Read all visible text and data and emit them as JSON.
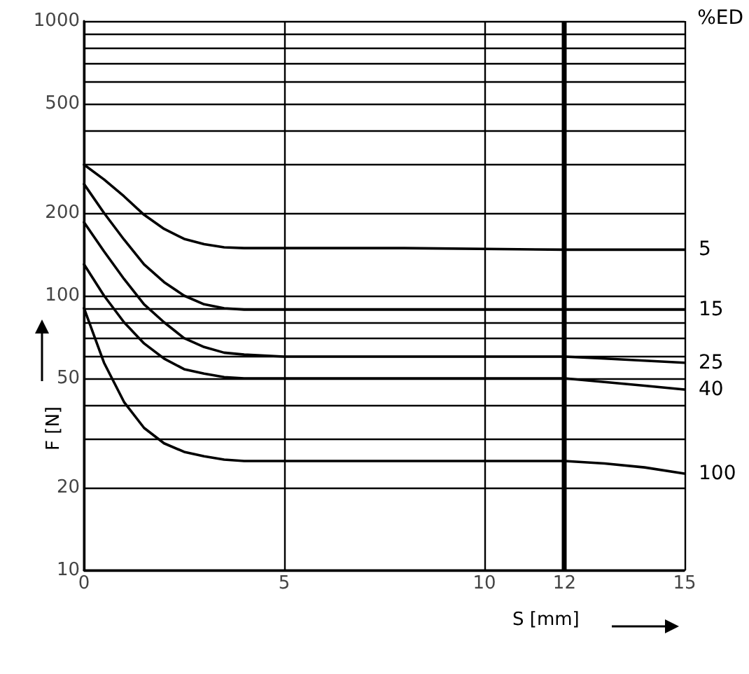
{
  "chart_data": {
    "type": "line",
    "xlabel": "S [mm]",
    "ylabel": "F [N]",
    "legend_title": "%ED",
    "log": "y",
    "grid": true,
    "legend": false,
    "marker": "none",
    "line_style": "solid",
    "xlim": [
      0,
      15
    ],
    "xticks": [
      0,
      5,
      10,
      12,
      15
    ],
    "ylim": [
      10,
      1000
    ],
    "yticks": [
      10,
      20,
      {
        "value": 30,
        "label": null
      },
      {
        "value": 40,
        "label": null
      },
      50,
      {
        "value": 60,
        "label": null
      },
      {
        "value": 70,
        "label": null
      },
      {
        "value": 80,
        "label": null
      },
      {
        "value": 90,
        "label": null
      },
      100,
      200,
      {
        "value": 300,
        "label": null
      },
      {
        "value": 400,
        "label": null
      },
      500,
      {
        "value": 600,
        "label": null
      },
      {
        "value": 700,
        "label": null
      },
      {
        "value": 800,
        "label": null
      },
      {
        "value": 900,
        "label": null
      },
      1000
    ],
    "ref_lines": [
      {
        "axis": "x",
        "value": 12,
        "color": "#000000"
      }
    ],
    "series": [
      {
        "name": "5",
        "color": "#000000",
        "x": [
          0,
          0.5,
          1,
          1.5,
          2,
          2.5,
          3,
          3.5,
          4,
          8,
          12,
          15
        ],
        "values": [
          300,
          265,
          230,
          197,
          175,
          161,
          154,
          150,
          149,
          149,
          147,
          147
        ]
      },
      {
        "name": "15",
        "color": "#000000",
        "x": [
          0,
          0.5,
          1,
          1.5,
          2,
          2.5,
          3,
          3.5,
          4,
          15
        ],
        "values": [
          255,
          200,
          160,
          130,
          112,
          100,
          93,
          90,
          89,
          89
        ]
      },
      {
        "name": "25",
        "color": "#000000",
        "x": [
          0,
          0.5,
          1,
          1.5,
          2,
          2.5,
          3,
          3.5,
          4,
          5,
          12,
          13,
          15
        ],
        "values": [
          185,
          145,
          115,
          93,
          80,
          70,
          65,
          62,
          61,
          60,
          60,
          59,
          57
        ]
      },
      {
        "name": "40",
        "color": "#000000",
        "x": [
          0,
          0.5,
          1,
          1.5,
          2,
          2.5,
          3,
          3.5,
          4,
          12,
          13,
          14,
          15
        ],
        "values": [
          130,
          100,
          80,
          67,
          59,
          54,
          52,
          50.5,
          50,
          50,
          48.5,
          47,
          45.5
        ]
      },
      {
        "name": "100",
        "color": "#000000",
        "x": [
          0,
          0.5,
          1,
          1.5,
          2,
          2.5,
          3,
          3.5,
          4,
          12,
          13,
          14,
          15
        ],
        "values": [
          90,
          57,
          41,
          33,
          29,
          27,
          26,
          25.3,
          25,
          25,
          24.5,
          23.7,
          22.5
        ]
      }
    ]
  }
}
